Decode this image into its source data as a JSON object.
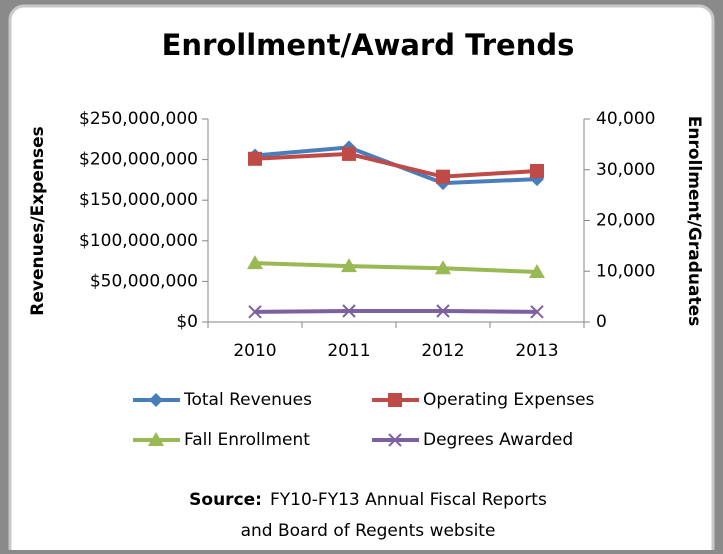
{
  "chart_data": {
    "type": "line",
    "title": "Enrollment/Award Trends",
    "ylabel": "Revenues/Expenses",
    "y2label": "Enrollment/Graduates",
    "categories": [
      "2010",
      "2011",
      "2012",
      "2013"
    ],
    "ylim": [
      0,
      250000000
    ],
    "yticks": [
      {
        "value": 0,
        "label": "$0"
      },
      {
        "value": 50000000,
        "label": "$50,000,000"
      },
      {
        "value": 100000000,
        "label": "$100,000,000"
      },
      {
        "value": 150000000,
        "label": "$150,000,000"
      },
      {
        "value": 200000000,
        "label": "$200,000,000"
      },
      {
        "value": 250000000,
        "label": "$250,000,000"
      }
    ],
    "y2lim": [
      0,
      40000
    ],
    "y2ticks": [
      0,
      {
        "value": 10000,
        "label": "10,000"
      },
      {
        "value": 20000,
        "label": "20,000"
      },
      {
        "value": 30000,
        "label": "30,000"
      },
      {
        "value": 40000,
        "label": "40,000"
      }
    ],
    "grid": false,
    "legend": "bottom",
    "series": [
      {
        "name": "Total Revenues",
        "color": "#4a7ebb",
        "marker": "diamond",
        "values": [
          205000000,
          215000000,
          171000000,
          176000000
        ]
      },
      {
        "name": "Operating Expenses",
        "color": "#be4b48",
        "marker": "square",
        "values": [
          201000000,
          207000000,
          179000000,
          186000000
        ]
      },
      {
        "name": "Fall Enrollment",
        "color": "#98b954",
        "marker": "triangle",
        "axis": "y2",
        "values": [
          11600,
          11000,
          10600,
          9850
        ]
      },
      {
        "name": "Degrees Awarded",
        "color": "#7d60a0",
        "marker": "x",
        "axis": "y2",
        "values": [
          2000,
          2170,
          2170,
          2000
        ]
      }
    ],
    "source": {
      "label": "Source:",
      "lines": [
        "FY10-FY13 Annual Fiscal Reports",
        "and Board of Regents website"
      ]
    }
  }
}
